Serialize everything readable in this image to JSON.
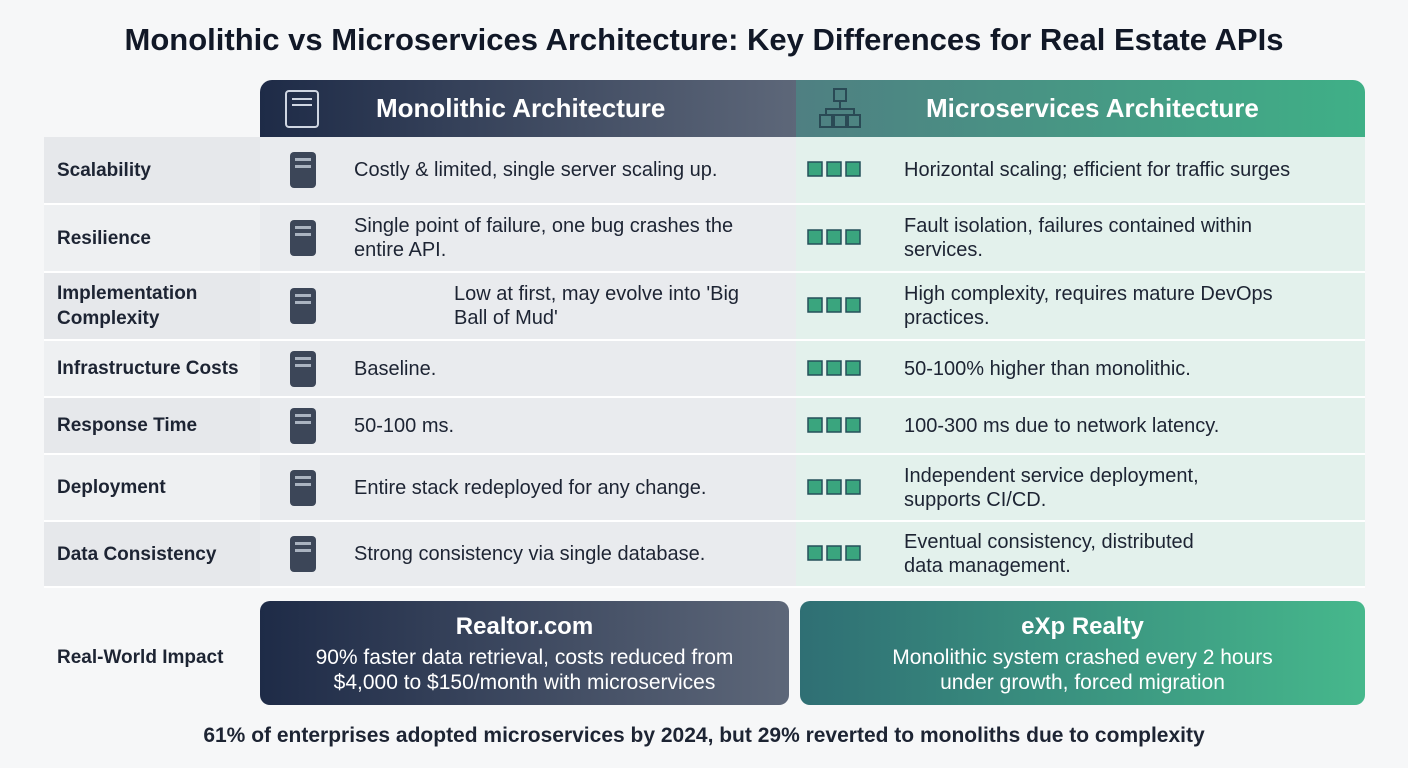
{
  "title": "Monolithic vs Microservices Architecture: Key Differences for Real Estate APIs",
  "columns": {
    "monolithic": "Monolithic Architecture",
    "microservices": "Microservices Architecture"
  },
  "rows": [
    {
      "label": [
        "Scalability"
      ],
      "monolithic": [
        "Costly & limited, single server scaling up."
      ],
      "microservices": [
        "Horizontal scaling; efficient for traffic surges"
      ]
    },
    {
      "label": [
        "Resilience"
      ],
      "monolithic": [
        "Single point of failure, one bug crashes the",
        "entire API."
      ],
      "microservices": [
        "Fault isolation, failures contained within",
        "services."
      ]
    },
    {
      "label": [
        "Implementation",
        "Complexity"
      ],
      "monolithic": [
        "Low at first, may evolve into 'Big",
        "Ball of Mud'"
      ],
      "microservices": [
        "High complexity, requires mature DevOps",
        "practices."
      ]
    },
    {
      "label": [
        "Infrastructure Costs"
      ],
      "monolithic": [
        "Baseline."
      ],
      "microservices": [
        "50-100% higher than monolithic."
      ]
    },
    {
      "label": [
        "Response Time"
      ],
      "monolithic": [
        "50-100 ms."
      ],
      "microservices": [
        "100-300 ms due to network latency."
      ]
    },
    {
      "label": [
        "Deployment"
      ],
      "monolithic": [
        "Entire stack redeployed for any change."
      ],
      "microservices": [
        "Independent service deployment,",
        "supports CI/CD."
      ]
    },
    {
      "label": [
        "Data Consistency"
      ],
      "monolithic": [
        "Strong consistency via single database."
      ],
      "microservices": [
        "Eventual consistency, distributed",
        "data management."
      ]
    }
  ],
  "impact": {
    "label": "Real-World Impact",
    "cards": [
      {
        "title": "Realtor.com",
        "text": [
          "90% faster data retrieval, costs reduced from",
          "$4,000 to $150/month with microservices"
        ]
      },
      {
        "title": "eXp Realty",
        "text": [
          "Monolithic system crashed every 2 hours",
          "under growth, forced migration"
        ]
      }
    ]
  },
  "footer": "61% of enterprises adopted microservices by 2024, but 29% reverted to monoliths due to complexity"
}
